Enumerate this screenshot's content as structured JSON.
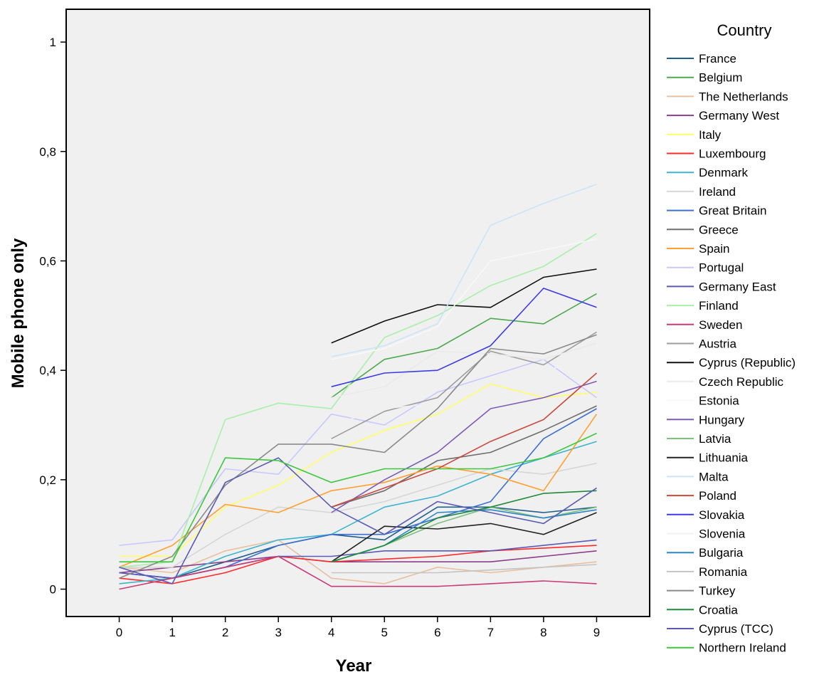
{
  "chart_data": {
    "type": "line",
    "title": "",
    "xlabel": "Year",
    "ylabel": "Mobile phone only",
    "x": [
      0,
      1,
      2,
      3,
      4,
      5,
      6,
      7,
      8,
      9
    ],
    "x_tick_labels": [
      "0",
      "1",
      "2",
      "3",
      "4",
      "5",
      "6",
      "7",
      "8",
      "9"
    ],
    "xlim": [
      -1,
      10
    ],
    "ylim": [
      -0.05,
      1.06
    ],
    "y_ticks": [
      0,
      0.2,
      0.4,
      0.6,
      0.8,
      1
    ],
    "y_tick_labels": [
      "0",
      "0,2",
      "0,4",
      "0,6",
      "0,8",
      "1"
    ],
    "grid": false,
    "plot_background": "#f0f0f0",
    "legend": {
      "title": "Country",
      "position": "right"
    },
    "series": [
      {
        "name": "France",
        "color": "#1f5f8b",
        "values": [
          0.03,
          0.02,
          0.05,
          0.08,
          0.1,
          0.09,
          0.15,
          0.15,
          0.14,
          0.15
        ]
      },
      {
        "name": "Belgium",
        "color": "#4daa4d",
        "values": [
          null,
          null,
          null,
          null,
          0.35,
          0.42,
          0.44,
          0.495,
          0.485,
          0.54
        ]
      },
      {
        "name": "The Netherlands",
        "color": "#e8c0a0",
        "values": [
          0.04,
          0.03,
          0.07,
          0.09,
          0.02,
          0.01,
          0.04,
          0.03,
          0.04,
          0.05
        ]
      },
      {
        "name": "Germany West",
        "color": "#8a3f8a",
        "values": [
          0.03,
          0.04,
          0.05,
          0.06,
          0.05,
          0.05,
          0.05,
          0.05,
          0.06,
          0.07
        ]
      },
      {
        "name": "Italy",
        "color": "#ffff66",
        "values": [
          0.06,
          0.06,
          0.15,
          0.19,
          0.25,
          0.29,
          0.32,
          0.375,
          0.35,
          0.36
        ]
      },
      {
        "name": "Luxembourg",
        "color": "#ff2a2a",
        "values": [
          0.02,
          0.01,
          0.03,
          0.06,
          0.05,
          0.055,
          0.06,
          0.07,
          0.075,
          0.08
        ]
      },
      {
        "name": "Denmark",
        "color": "#3cb5cf",
        "values": [
          0.01,
          0.02,
          0.06,
          0.09,
          0.1,
          0.15,
          0.17,
          0.21,
          0.24,
          0.27
        ]
      },
      {
        "name": "Ireland",
        "color": "#d6d6d6",
        "values": [
          0.04,
          0.04,
          0.1,
          0.15,
          0.14,
          0.16,
          0.19,
          0.22,
          0.21,
          0.23
        ]
      },
      {
        "name": "Great Britain",
        "color": "#3d6fd0",
        "values": [
          0.03,
          0.02,
          0.04,
          0.08,
          0.1,
          0.1,
          0.13,
          0.16,
          0.275,
          0.33
        ]
      },
      {
        "name": "Greece",
        "color": "#6e6e6e",
        "values": [
          null,
          null,
          null,
          null,
          0.15,
          0.18,
          0.235,
          0.25,
          0.29,
          0.335
        ]
      },
      {
        "name": "Spain",
        "color": "#ffa030",
        "values": [
          0.04,
          0.08,
          0.155,
          0.14,
          0.18,
          0.195,
          0.225,
          0.21,
          0.18,
          0.32
        ]
      },
      {
        "name": "Portugal",
        "color": "#c8c8ff",
        "values": [
          0.08,
          0.09,
          0.22,
          0.21,
          0.32,
          0.3,
          0.36,
          0.39,
          0.42,
          0.35
        ]
      },
      {
        "name": "Germany East",
        "color": "#5a5ab4",
        "values": [
          0.03,
          0.02,
          0.04,
          0.06,
          0.06,
          0.07,
          0.07,
          0.07,
          0.08,
          0.09
        ]
      },
      {
        "name": "Finland",
        "color": "#a8f0a8",
        "values": [
          0.04,
          0.05,
          0.31,
          0.34,
          0.33,
          0.46,
          0.5,
          0.555,
          0.59,
          0.65
        ]
      },
      {
        "name": "Sweden",
        "color": "#c83c78",
        "values": [
          0.0,
          0.02,
          0.04,
          0.06,
          0.005,
          0.005,
          0.005,
          0.01,
          0.015,
          0.01
        ]
      },
      {
        "name": "Austria",
        "color": "#9e9e9e",
        "values": [
          null,
          null,
          null,
          null,
          0.275,
          0.325,
          0.35,
          0.435,
          0.41,
          0.47
        ]
      },
      {
        "name": "Cyprus (Republic)",
        "color": "#101010",
        "values": [
          null,
          null,
          null,
          null,
          0.45,
          0.49,
          0.52,
          0.515,
          0.57,
          0.585
        ]
      },
      {
        "name": "Czech Republic",
        "color": "#eaeaea",
        "values": [
          null,
          null,
          null,
          null,
          0.35,
          0.37,
          0.435,
          0.43,
          0.42,
          0.45
        ]
      },
      {
        "name": "Estonia",
        "color": "#f8f8f8",
        "values": [
          null,
          null,
          null,
          null,
          0.42,
          0.44,
          0.48,
          0.6,
          0.62,
          0.64
        ]
      },
      {
        "name": "Hungary",
        "color": "#7c5cb4",
        "values": [
          null,
          null,
          null,
          null,
          0.14,
          0.2,
          0.25,
          0.33,
          0.35,
          0.38
        ]
      },
      {
        "name": "Latvia",
        "color": "#7fbf7f",
        "values": [
          null,
          null,
          null,
          null,
          0.05,
          0.08,
          0.12,
          0.15,
          0.13,
          0.15
        ]
      },
      {
        "name": "Lithuania",
        "color": "#222222",
        "values": [
          null,
          null,
          null,
          null,
          0.05,
          0.115,
          0.11,
          0.12,
          0.1,
          0.14
        ]
      },
      {
        "name": "Malta",
        "color": "#cce4f8",
        "values": [
          null,
          null,
          null,
          null,
          0.425,
          0.445,
          0.485,
          0.665,
          0.705,
          0.74
        ]
      },
      {
        "name": "Poland",
        "color": "#c84a3c",
        "values": [
          null,
          null,
          null,
          null,
          0.15,
          0.185,
          0.22,
          0.27,
          0.31,
          0.395
        ]
      },
      {
        "name": "Slovakia",
        "color": "#3a3ae6",
        "values": [
          null,
          null,
          null,
          null,
          0.37,
          0.395,
          0.4,
          0.445,
          0.55,
          0.515
        ]
      },
      {
        "name": "Slovenia",
        "color": "#f0f0f0",
        "values": [
          null,
          null,
          null,
          null,
          0.3,
          0.33,
          0.34,
          0.38,
          0.4,
          0.42
        ]
      },
      {
        "name": "Bulgaria",
        "color": "#2e86c8",
        "values": [
          null,
          null,
          null,
          null,
          0.05,
          0.08,
          0.14,
          0.145,
          0.13,
          0.145
        ]
      },
      {
        "name": "Romania",
        "color": "#c4c4c4",
        "values": [
          null,
          null,
          null,
          null,
          0.03,
          0.03,
          0.03,
          0.035,
          0.04,
          0.045
        ]
      },
      {
        "name": "Turkey",
        "color": "#8a8a8a",
        "values": [
          0.02,
          0.06,
          0.19,
          0.265,
          0.265,
          0.25,
          0.33,
          0.44,
          0.43,
          0.465
        ]
      },
      {
        "name": "Croatia",
        "color": "#1e8c3a",
        "values": [
          null,
          null,
          null,
          null,
          0.05,
          0.08,
          0.13,
          0.15,
          0.175,
          0.18
        ]
      },
      {
        "name": "Cyprus (TCC)",
        "color": "#5a5ab4",
        "values": [
          0.04,
          0.01,
          0.195,
          0.24,
          0.15,
          0.1,
          0.16,
          0.14,
          0.12,
          0.185
        ]
      },
      {
        "name": "Northern Ireland",
        "color": "#3cc83c",
        "values": [
          0.05,
          0.05,
          0.24,
          0.235,
          0.195,
          0.22,
          0.22,
          0.22,
          0.24,
          0.285
        ]
      }
    ]
  }
}
